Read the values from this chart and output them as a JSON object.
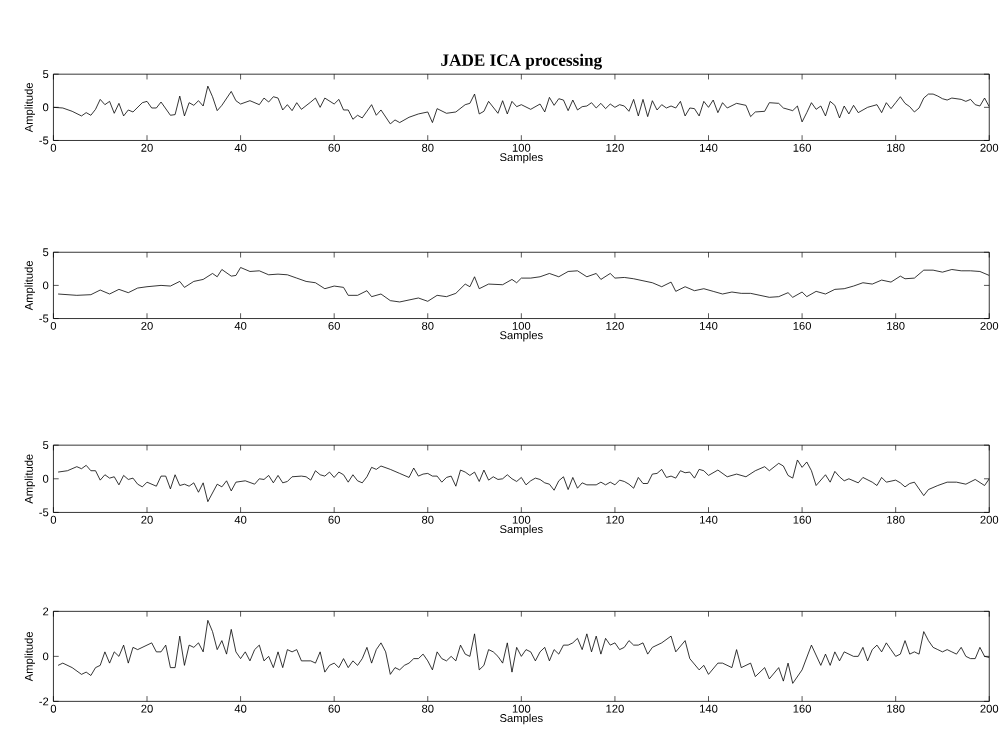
{
  "chart_data": [
    {
      "type": "line",
      "title": "JADE ICA processing",
      "xlabel": "Samples",
      "ylabel": "Amplitude",
      "color": "#000000",
      "xlim": [
        0,
        200
      ],
      "ylim": [
        -5,
        5
      ],
      "xticks": [
        0,
        20,
        40,
        60,
        80,
        100,
        120,
        140,
        160,
        180,
        200
      ],
      "yticks": [
        -5,
        0,
        5
      ],
      "x": [
        0,
        2,
        4,
        6,
        7,
        8,
        9,
        10,
        11,
        12,
        13,
        14,
        15,
        16,
        17,
        19,
        20,
        21,
        22,
        23,
        25,
        26,
        27,
        28,
        29,
        30,
        31,
        32,
        33,
        34,
        35,
        36,
        38,
        39,
        40,
        42,
        44,
        45,
        46,
        47,
        48,
        49,
        50,
        51,
        52,
        53,
        55,
        56,
        57,
        58,
        60,
        61,
        62,
        63,
        64,
        65,
        66,
        67,
        68,
        69,
        70,
        72,
        73,
        74,
        76,
        78,
        80,
        81,
        82,
        84,
        86,
        88,
        89,
        90,
        91,
        92,
        93,
        95,
        96,
        97,
        98,
        99,
        100,
        102,
        104,
        105,
        106,
        107,
        108,
        109,
        110,
        111,
        112,
        113,
        114,
        115,
        116,
        117,
        118,
        119,
        120,
        121,
        122,
        123,
        124,
        125,
        126,
        127,
        128,
        129,
        130,
        131,
        132,
        133,
        134,
        135,
        136,
        137,
        138,
        139,
        140,
        141,
        142,
        143,
        144,
        146,
        148,
        149,
        150,
        152,
        153,
        155,
        156,
        158,
        159,
        160,
        161,
        162,
        163,
        164,
        165,
        166,
        167,
        168,
        169,
        170,
        171,
        172,
        174,
        176,
        177,
        178,
        179,
        180,
        181,
        182,
        183,
        184,
        185,
        186,
        187,
        188,
        189,
        190,
        191,
        192,
        194,
        195,
        196,
        197,
        198,
        199,
        200
      ],
      "values": [
        0,
        -0.1,
        -0.6,
        -1.3,
        -0.8,
        -1.2,
        -0.3,
        1.2,
        0.4,
        0.9,
        -0.9,
        0.6,
        -1.3,
        -0.4,
        -0.7,
        0.7,
        0.9,
        -0.1,
        -0.1,
        0.8,
        -1.2,
        -1.1,
        1.7,
        -1.3,
        0.7,
        0.3,
        1,
        0.2,
        3.2,
        1.6,
        -0.5,
        0.3,
        2.4,
        1,
        0.5,
        1,
        0.4,
        1.4,
        0.8,
        1.6,
        1.4,
        -0.4,
        0.4,
        -0.5,
        0.7,
        -0.3,
        0.8,
        1.4,
        0,
        1.4,
        0.5,
        1.2,
        -0.4,
        -0.4,
        -1.8,
        -1.2,
        -1.6,
        -0.6,
        0.4,
        -1.2,
        -0.4,
        -2.5,
        -1.9,
        -2.3,
        -1.5,
        -1,
        -0.7,
        -2.3,
        -0.2,
        -0.9,
        -0.7,
        0.4,
        0.6,
        2,
        -1,
        -0.6,
        0.9,
        -0.9,
        1,
        -1,
        0.9,
        0.1,
        0.4,
        -0.3,
        0.5,
        -0.7,
        1.5,
        0.3,
        1.3,
        1.1,
        -0.5,
        1.1,
        -0.4,
        0.1,
        0.2,
        0.7,
        -0.1,
        0.6,
        -0.2,
        0.5,
        0,
        0.4,
        0.2,
        -0.6,
        1.2,
        -1.3,
        1.2,
        -1.4,
        1,
        -0.4,
        0.4,
        -0.1,
        0.2,
        -0.1,
        0.9,
        -1.3,
        -0.1,
        -0.2,
        -1.3,
        0.9,
        0,
        1.1,
        -0.8,
        0.7,
        -0.1,
        0.6,
        0.3,
        -1.4,
        -0.7,
        -0.6,
        0.7,
        0.6,
        -0.1,
        -0.5,
        0.2,
        -2.2,
        -0.8,
        0.7,
        -0.3,
        0.2,
        -1.3,
        0.9,
        0.3,
        -1.6,
        0.2,
        -1,
        0.3,
        -0.8,
        0,
        0.4,
        -0.8,
        0.7,
        -0.2,
        0.7,
        1.6,
        0.6,
        0.1,
        -0.7,
        -0.1,
        1.4,
        2,
        2,
        1.7,
        1.3,
        1.1,
        1.4,
        1.2,
        0.9,
        1.2,
        0.4,
        0.2,
        1.4,
        0.1
      ]
    },
    {
      "type": "line",
      "xlabel": "Samples",
      "ylabel": "Amplitude",
      "color": "#000000",
      "xlim": [
        0,
        200
      ],
      "ylim": [
        -5,
        5
      ],
      "xticks": [
        0,
        20,
        40,
        60,
        80,
        100,
        120,
        140,
        160,
        180,
        200
      ],
      "yticks": [
        -5,
        0,
        5
      ],
      "x": [
        1,
        5,
        8,
        10,
        12,
        14,
        16,
        18,
        20,
        23,
        25,
        27,
        28,
        30,
        32,
        34,
        35,
        36,
        38,
        39,
        40,
        42,
        44,
        46,
        48,
        50,
        52,
        54,
        56,
        58,
        60,
        62,
        63,
        65,
        67,
        68,
        70,
        72,
        74,
        76,
        78,
        80,
        82,
        84,
        86,
        88,
        89,
        90,
        91,
        93,
        96,
        98,
        99,
        100,
        102,
        104,
        106,
        108,
        110,
        112,
        114,
        116,
        117,
        119,
        120,
        122,
        124,
        126,
        128,
        130,
        132,
        133,
        135,
        137,
        139,
        141,
        143,
        145,
        147,
        149,
        151,
        153,
        155,
        157,
        158,
        160,
        161,
        163,
        165,
        167,
        169,
        171,
        173,
        175,
        177,
        179,
        181,
        182,
        184,
        186,
        188,
        190,
        192,
        194,
        196,
        198,
        200
      ],
      "values": [
        -1.3,
        -1.5,
        -1.4,
        -0.7,
        -1.3,
        -0.6,
        -1.1,
        -0.4,
        -0.2,
        0,
        -0.1,
        0.6,
        -0.3,
        0.6,
        0.9,
        1.8,
        1.3,
        2.4,
        1.4,
        1.5,
        2.7,
        2.1,
        2.2,
        1.6,
        1.7,
        1.6,
        1.1,
        0.6,
        0.4,
        -0.5,
        -0.1,
        -0.3,
        -1.5,
        -1.5,
        -0.8,
        -1.7,
        -1.3,
        -2.3,
        -2.5,
        -2.2,
        -1.9,
        -2.4,
        -1.5,
        -1.7,
        -1.2,
        0.2,
        -0.2,
        1.3,
        -0.5,
        0.2,
        0.1,
        0.9,
        0.4,
        1.1,
        1.1,
        1.3,
        1.8,
        1.3,
        2.1,
        2.2,
        1.3,
        1.8,
        0.9,
        1.8,
        1.1,
        1.2,
        1,
        0.7,
        0.4,
        -0.2,
        0.5,
        -0.9,
        -0.2,
        -0.8,
        -0.5,
        -0.9,
        -1.3,
        -1,
        -1.2,
        -1.2,
        -1.5,
        -1.8,
        -1.7,
        -1.1,
        -1.8,
        -1,
        -1.7,
        -0.9,
        -1.3,
        -0.6,
        -0.5,
        -0.1,
        0.4,
        0.2,
        0.8,
        0.5,
        1.4,
        1,
        1.1,
        2.3,
        2.3,
        2,
        2.4,
        2.2,
        2.2,
        2.1,
        1.5
      ]
    },
    {
      "type": "line",
      "xlabel": "Samples",
      "ylabel": "Amplitude",
      "color": "#000000",
      "xlim": [
        0,
        200
      ],
      "ylim": [
        -5,
        5
      ],
      "xticks": [
        0,
        20,
        40,
        60,
        80,
        100,
        120,
        140,
        160,
        180,
        200
      ],
      "yticks": [
        -5,
        0,
        5
      ],
      "x": [
        1,
        3,
        5,
        6,
        7,
        8,
        9,
        10,
        11,
        12,
        13,
        14,
        15,
        16,
        17,
        18,
        19,
        20,
        22,
        23,
        24,
        25,
        26,
        27,
        28,
        29,
        30,
        31,
        32,
        33,
        35,
        36,
        37,
        38,
        39,
        41,
        43,
        44,
        45,
        46,
        47,
        48,
        49,
        50,
        51,
        53,
        54,
        55,
        56,
        57,
        58,
        59,
        60,
        61,
        62,
        63,
        64,
        65,
        66,
        67,
        68,
        69,
        70,
        72,
        74,
        76,
        77,
        78,
        79,
        80,
        81,
        82,
        83,
        84,
        85,
        86,
        87,
        88,
        89,
        90,
        91,
        92,
        93,
        94,
        95,
        96,
        97,
        98,
        99,
        100,
        101,
        102,
        103,
        104,
        105,
        106,
        107,
        108,
        109,
        110,
        111,
        112,
        113,
        114,
        116,
        117,
        118,
        119,
        120,
        121,
        122,
        123,
        124,
        125,
        126,
        127,
        128,
        129,
        130,
        131,
        132,
        133,
        134,
        135,
        136,
        137,
        138,
        139,
        140,
        142,
        144,
        146,
        148,
        150,
        152,
        153,
        155,
        156,
        157,
        158,
        159,
        160,
        161,
        162,
        163,
        165,
        166,
        167,
        168,
        169,
        170,
        172,
        173,
        175,
        176,
        177,
        178,
        180,
        181,
        182,
        183,
        184,
        186,
        187,
        189,
        191,
        193,
        195,
        197,
        199,
        200
      ],
      "values": [
        1,
        1.2,
        1.8,
        1.5,
        2,
        1.2,
        1.2,
        -0.2,
        0.6,
        0.1,
        0.3,
        -0.9,
        0.5,
        -0.1,
        0.1,
        -0.8,
        -1.2,
        -0.5,
        -1.1,
        0.4,
        0.4,
        -1.5,
        0.6,
        -1,
        -0.8,
        -1.1,
        -0.6,
        -2,
        -0.6,
        -3.4,
        -0.8,
        -1.2,
        -0.3,
        -1.8,
        -0.5,
        -0.3,
        -0.8,
        0,
        -0.1,
        0.5,
        -0.6,
        0.5,
        -0.6,
        -0.4,
        0.3,
        0.4,
        0.3,
        -0.2,
        1.2,
        0.6,
        0.4,
        1,
        0.2,
        1,
        0.6,
        -0.5,
        0.6,
        -0.3,
        -0.6,
        0.3,
        1.7,
        1.4,
        1.9,
        1.4,
        0.8,
        0.2,
        1.6,
        0.4,
        0.7,
        0.8,
        0.4,
        0.4,
        -0.5,
        0.2,
        0.4,
        -1.1,
        1.3,
        1,
        0.5,
        1,
        -0.4,
        1.3,
        -0.2,
        0.3,
        -0.1,
        0,
        0.6,
        0,
        -0.4,
        0.2,
        -0.9,
        -0.3,
        0.1,
        -0.1,
        -0.6,
        -0.8,
        -1.7,
        -0.3,
        0.3,
        -1.6,
        0.2,
        -1.4,
        -0.6,
        -0.9,
        -0.9,
        -0.5,
        -0.9,
        -0.5,
        -0.9,
        -0.2,
        -0.4,
        -0.8,
        -1.4,
        0.2,
        -0.7,
        -0.7,
        0.7,
        0.8,
        1.4,
        0.2,
        0.4,
        0.1,
        1.2,
        0.9,
        1,
        0.1,
        1.4,
        1.2,
        0.5,
        1.3,
        0.3,
        0.7,
        0.3,
        1.2,
        1.8,
        1.2,
        2.3,
        1.9,
        0.5,
        0.1,
        2.8,
        1.7,
        2.5,
        1.2,
        -1,
        0.6,
        -0.5,
        1.1,
        0.3,
        -0.3,
        0,
        -0.6,
        0.2,
        -0.5,
        -1,
        0.2,
        -0.5,
        -0.2,
        -0.6,
        -1.2,
        -0.7,
        -0.5,
        -2.5,
        -1.6,
        -1,
        -0.5,
        -0.5,
        -0.8,
        -0.1,
        -1,
        0
      ]
    },
    {
      "type": "line",
      "xlabel": "Samples",
      "ylabel": "Amplitude",
      "color": "#000000",
      "xlim": [
        0,
        200
      ],
      "ylim": [
        -2,
        2
      ],
      "xticks": [
        0,
        20,
        40,
        60,
        80,
        100,
        120,
        140,
        160,
        180,
        200
      ],
      "yticks": [
        -2,
        0,
        2
      ],
      "x": [
        1,
        2,
        4,
        6,
        7,
        8,
        9,
        10,
        11,
        12,
        13,
        14,
        15,
        16,
        17,
        18,
        20,
        21,
        22,
        23,
        24,
        25,
        26,
        27,
        28,
        29,
        30,
        31,
        32,
        33,
        34,
        35,
        36,
        37,
        38,
        39,
        40,
        41,
        42,
        43,
        44,
        45,
        46,
        47,
        48,
        49,
        50,
        51,
        52,
        53,
        54,
        55,
        56,
        57,
        58,
        59,
        60,
        61,
        62,
        63,
        64,
        65,
        66,
        67,
        68,
        69,
        70,
        71,
        72,
        73,
        74,
        75,
        76,
        77,
        78,
        79,
        80,
        81,
        82,
        83,
        84,
        85,
        86,
        87,
        88,
        89,
        90,
        91,
        92,
        93,
        94,
        95,
        96,
        97,
        98,
        99,
        100,
        101,
        102,
        103,
        104,
        105,
        106,
        107,
        108,
        109,
        110,
        111,
        112,
        113,
        114,
        115,
        116,
        117,
        118,
        119,
        120,
        121,
        122,
        123,
        124,
        125,
        126,
        127,
        128,
        130,
        132,
        133,
        135,
        136,
        138,
        139,
        140,
        142,
        143,
        145,
        146,
        147,
        149,
        150,
        152,
        153,
        155,
        156,
        157,
        158,
        160,
        162,
        164,
        165,
        166,
        167,
        168,
        169,
        170,
        171,
        172,
        173,
        174,
        175,
        176,
        177,
        178,
        179,
        180,
        181,
        182,
        183,
        184,
        185,
        186,
        187,
        188,
        189,
        190,
        191,
        192,
        193,
        194,
        195,
        196,
        197,
        198,
        199,
        200
      ],
      "values": [
        -0.4,
        -0.3,
        -0.5,
        -0.8,
        -0.7,
        -0.85,
        -0.5,
        -0.4,
        0.2,
        -0.3,
        0.2,
        0,
        0.5,
        -0.3,
        0.4,
        0.3,
        0.5,
        0.6,
        0.2,
        0.2,
        0.5,
        -0.5,
        -0.5,
        0.9,
        -0.4,
        0.5,
        0.4,
        0.6,
        0.2,
        1.6,
        1.1,
        0.3,
        0.7,
        0.1,
        1.2,
        0.2,
        -0.1,
        0.2,
        -0.2,
        0.3,
        0.5,
        -0.2,
        0,
        -0.5,
        0.2,
        -0.5,
        0.3,
        0.2,
        0.3,
        -0.2,
        -0.2,
        -0.2,
        -0.3,
        0.2,
        -0.7,
        -0.4,
        -0.3,
        -0.5,
        -0.1,
        -0.5,
        -0.2,
        -0.4,
        -0.1,
        0.4,
        -0.3,
        0.3,
        0.6,
        0.2,
        -0.8,
        -0.5,
        -0.6,
        -0.4,
        -0.3,
        -0.1,
        -0.1,
        0.1,
        -0.2,
        -0.6,
        0.2,
        -0.1,
        -0.2,
        0,
        -0.2,
        0.5,
        0.1,
        0,
        1,
        -0.6,
        -0.4,
        0.3,
        0.2,
        0,
        -0.3,
        0.6,
        -0.7,
        0.4,
        0,
        0.3,
        0.2,
        -0.2,
        0.2,
        0.4,
        -0.2,
        0.3,
        0.1,
        0.5,
        0.5,
        0.6,
        0.8,
        0.3,
        1,
        0.2,
        0.9,
        0.1,
        0.8,
        0.5,
        0.6,
        0.3,
        0.4,
        0.7,
        0.5,
        0.5,
        0.6,
        0.1,
        0.4,
        0.6,
        0.9,
        0.2,
        0.7,
        -0.1,
        -0.6,
        -0.4,
        -0.8,
        -0.3,
        -0.3,
        -0.5,
        0.3,
        -0.5,
        -0.3,
        -0.9,
        -0.5,
        -1,
        -0.5,
        -1.1,
        -0.3,
        -1.2,
        -0.6,
        0.5,
        -0.4,
        0.1,
        -0.4,
        0.2,
        -0.2,
        0.2,
        0.1,
        0,
        0,
        0.4,
        -0.2,
        0.3,
        0.5,
        0.2,
        0.6,
        0.3,
        0,
        0.1,
        0.7,
        0.1,
        0.2,
        0.1,
        1.1,
        0.7,
        0.4,
        0.3,
        0.2,
        0.3,
        0.2,
        0.1,
        0.4,
        0,
        -0.1,
        -0.1,
        0.4,
        0,
        -0.05
      ]
    }
  ]
}
